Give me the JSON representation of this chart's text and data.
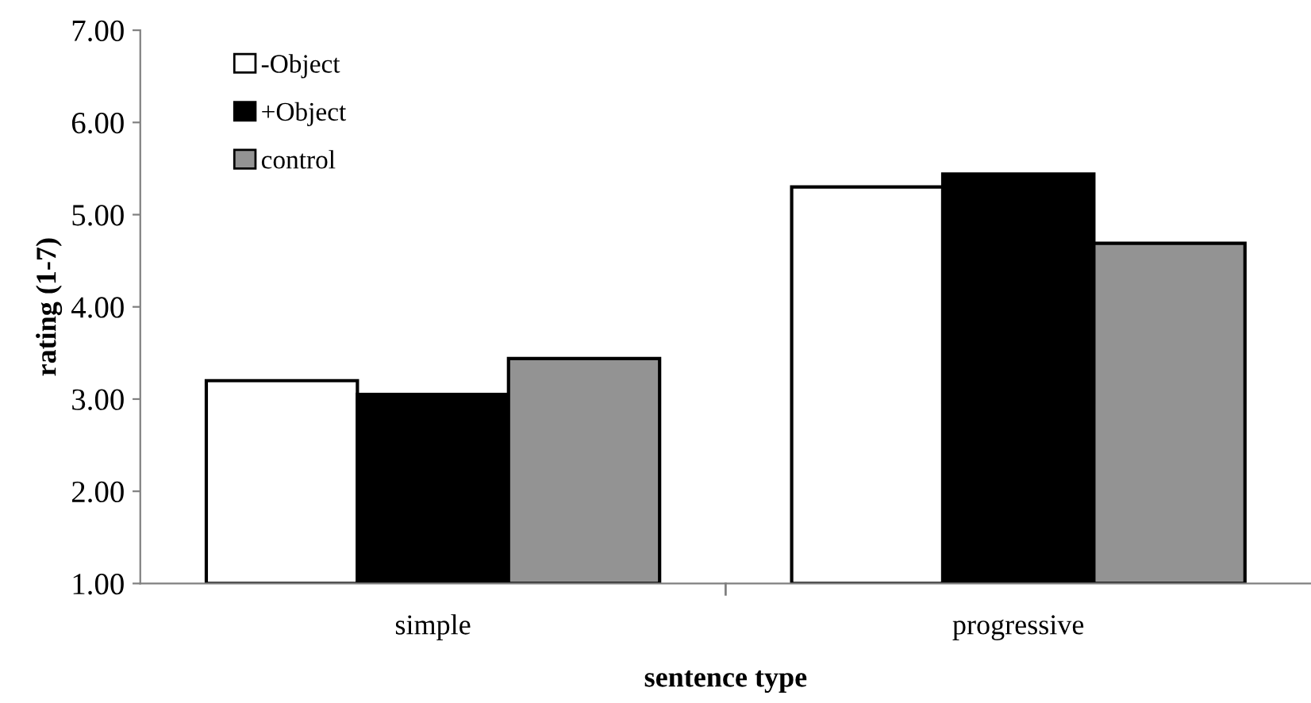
{
  "chart_data": {
    "type": "bar",
    "xlabel": "sentence type",
    "ylabel": "rating (1-7)",
    "categories": [
      "simple",
      "progressive"
    ],
    "series": [
      {
        "name": "-Object",
        "color": "#ffffff",
        "values": [
          3.2,
          5.3
        ]
      },
      {
        "name": "+Object",
        "color": "#000000",
        "values": [
          3.05,
          5.44
        ]
      },
      {
        "name": "control",
        "color": "#939393",
        "values": [
          3.44,
          4.69
        ]
      }
    ],
    "ylim": [
      1,
      7
    ],
    "yticks": [
      {
        "value": 1,
        "label": "1.00"
      },
      {
        "value": 2,
        "label": "2.00"
      },
      {
        "value": 3,
        "label": "3.00"
      },
      {
        "value": 4,
        "label": "4.00"
      },
      {
        "value": 5,
        "label": "5.00"
      },
      {
        "value": 6,
        "label": "6.00"
      },
      {
        "value": 7,
        "label": "7.00"
      }
    ],
    "grid": false,
    "legend": "top left"
  }
}
